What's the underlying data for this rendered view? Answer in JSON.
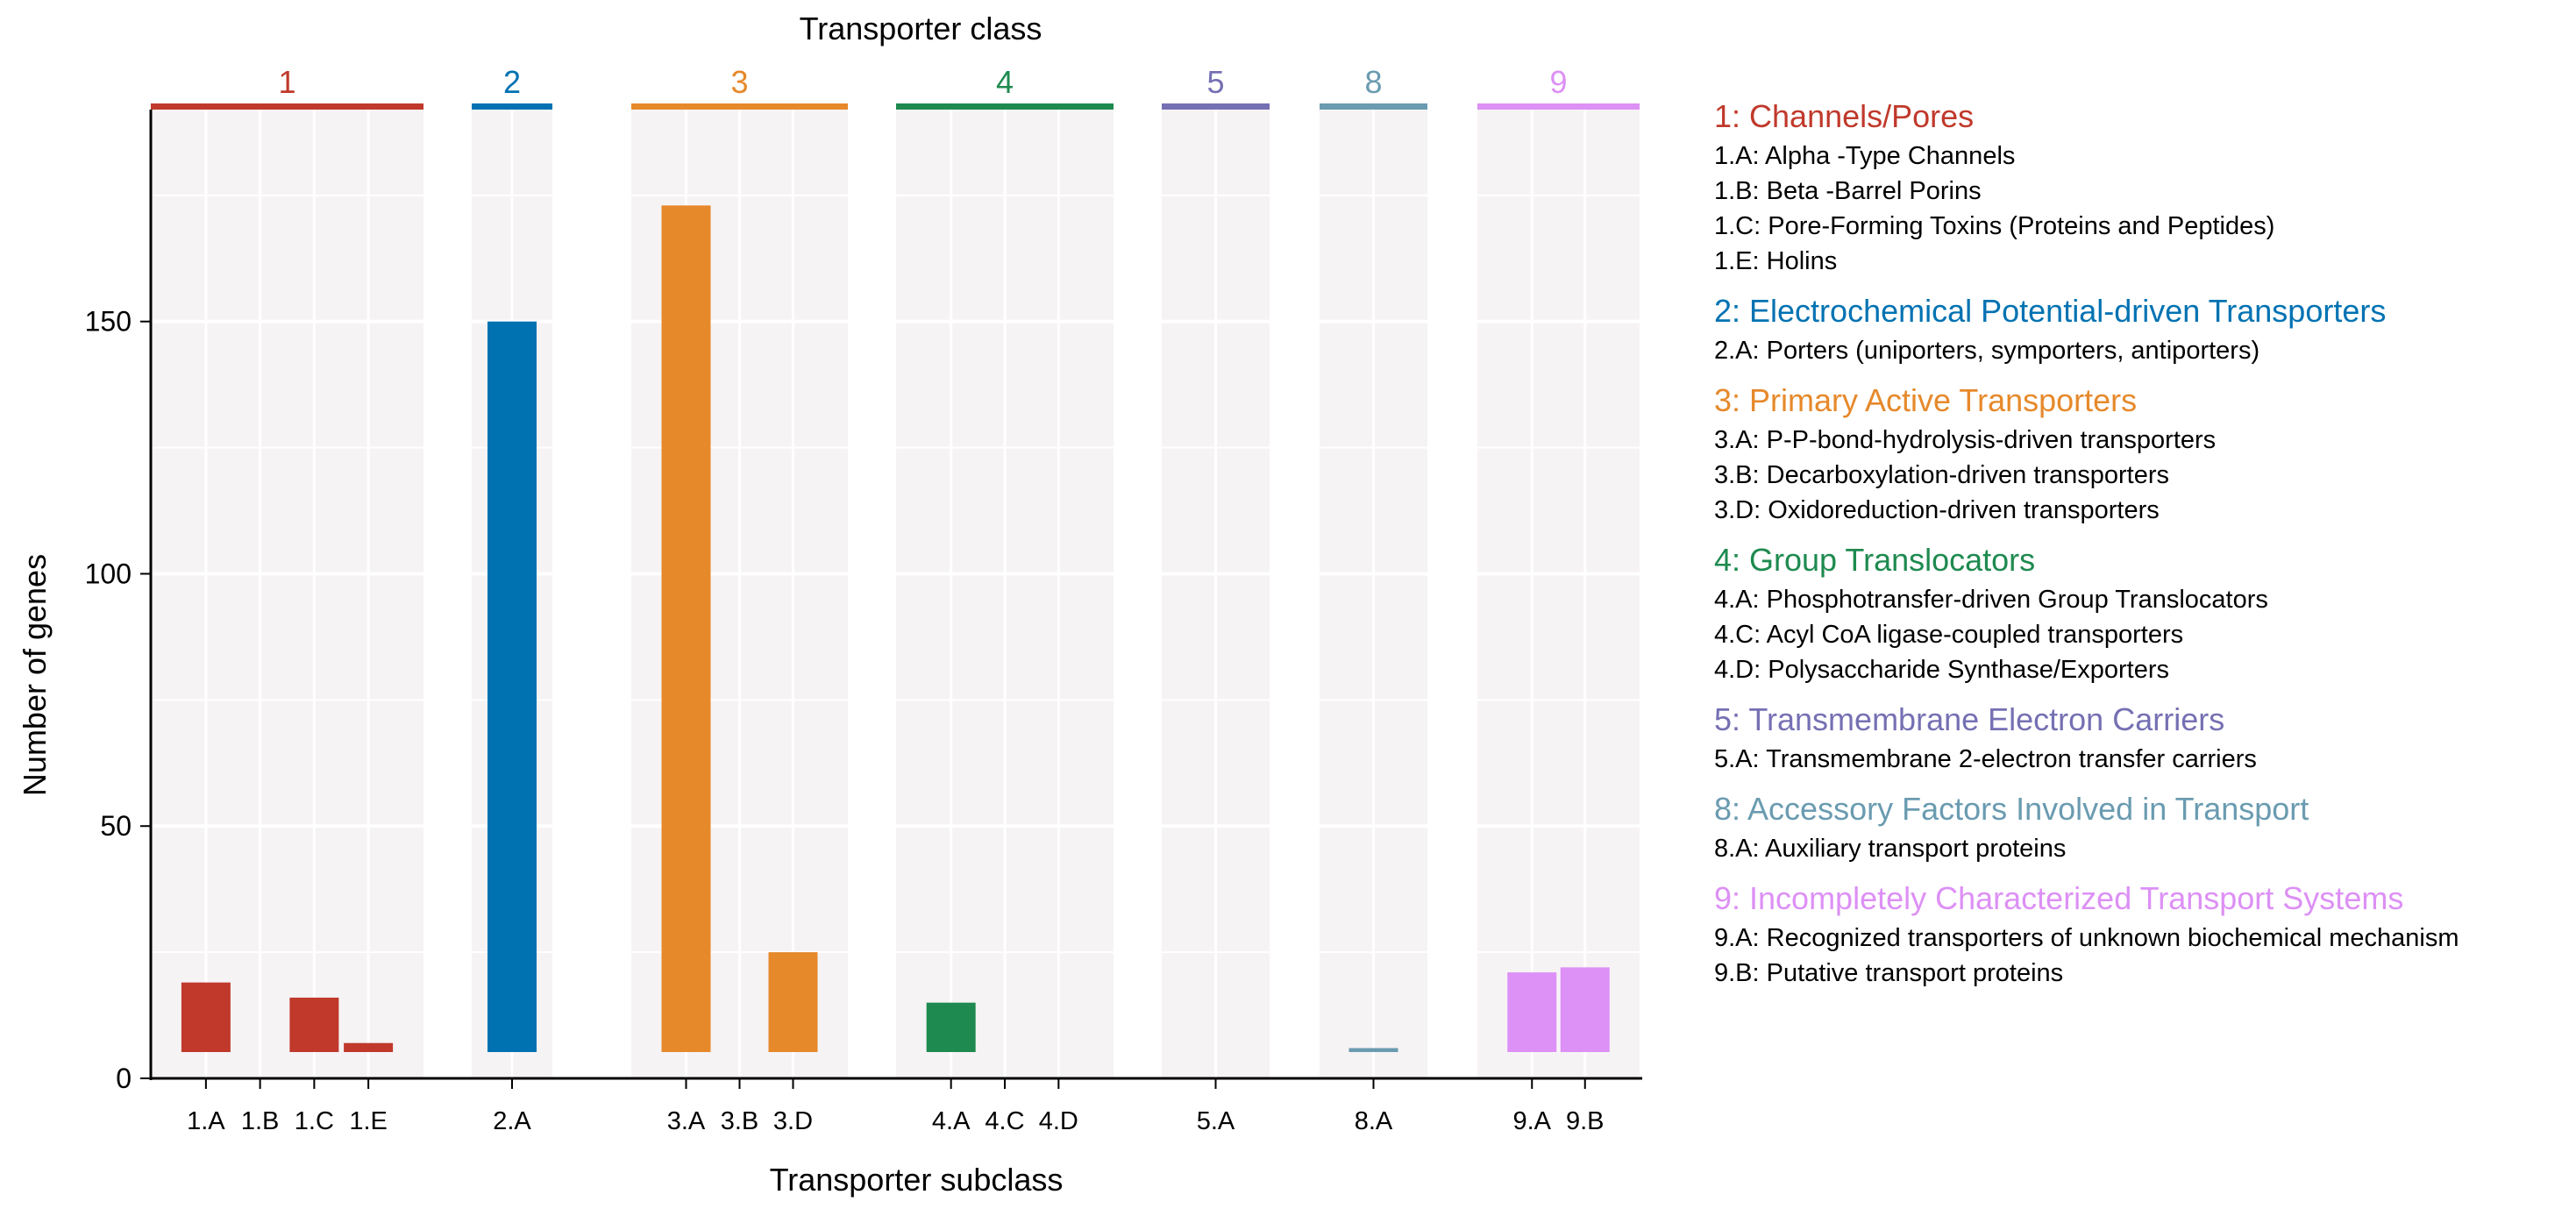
{
  "chart_data": {
    "type": "bar",
    "title": "Transporter class",
    "xlabel": "Transporter subclass",
    "ylabel": "Number of genes",
    "ylim": [
      0,
      192
    ],
    "y_ticks": [
      "0",
      "50",
      "100",
      "150"
    ],
    "grid": true,
    "legend_position": "right",
    "facets": [
      {
        "label": "1",
        "color": "#c0392b",
        "categories": [
          "1.A",
          "1.B",
          "1.C",
          "1.E"
        ],
        "values": [
          19,
          1,
          16,
          7
        ]
      },
      {
        "label": "2",
        "color": "#0072b2",
        "categories": [
          "2.A"
        ],
        "values": [
          150
        ]
      },
      {
        "label": "3",
        "color": "#e6892b",
        "categories": [
          "3.A",
          "3.B",
          "3.D"
        ],
        "values": [
          173,
          1,
          25
        ]
      },
      {
        "label": "4",
        "color": "#1e8a4f",
        "categories": [
          "4.A",
          "4.C",
          "4.D"
        ],
        "values": [
          15,
          1,
          1
        ]
      },
      {
        "label": "5",
        "color": "#7570b3",
        "categories": [
          "5.A"
        ],
        "values": [
          1
        ]
      },
      {
        "label": "8",
        "color": "#6a9bb0",
        "categories": [
          "8.A"
        ],
        "values": [
          6
        ]
      },
      {
        "label": "9",
        "color": "#dd90f5",
        "categories": [
          "9.A",
          "9.B"
        ],
        "values": [
          21,
          22
        ]
      }
    ]
  },
  "legend": [
    {
      "title": "1: Channels/Pores",
      "color": "#c0392b",
      "items": [
        "1.A: Alpha -Type Channels",
        "1.B: Beta -Barrel Porins",
        "1.C: Pore-Forming Toxins (Proteins and Peptides)",
        "1.E: Holins"
      ]
    },
    {
      "title": "2: Electrochemical Potential-driven Transporters",
      "color": "#0072b2",
      "items": [
        "2.A: Porters (uniporters, symporters, antiporters)"
      ]
    },
    {
      "title": "3: Primary Active Transporters",
      "color": "#e6892b",
      "items": [
        "3.A: P-P-bond-hydrolysis-driven transporters",
        "3.B: Decarboxylation-driven transporters",
        "3.D: Oxidoreduction-driven transporters"
      ]
    },
    {
      "title": "4: Group Translocators",
      "color": "#1e8a4f",
      "items": [
        "4.A: Phosphotransfer-driven Group Translocators",
        "4.C: Acyl CoA ligase-coupled transporters",
        "4.D: Polysaccharide Synthase/Exporters"
      ]
    },
    {
      "title": "5: Transmembrane Electron Carriers",
      "color": "#7570b3",
      "items": [
        "5.A: Transmembrane 2-electron transfer carriers"
      ]
    },
    {
      "title": "8: Accessory Factors Involved in Transport",
      "color": "#6a9bb0",
      "items": [
        "8.A: Auxiliary transport proteins"
      ]
    },
    {
      "title": "9: Incompletely Characterized Transport Systems",
      "color": "#dd90f5",
      "items": [
        "9.A: Recognized transporters of unknown biochemical mechanism",
        "9.B: Putative transport proteins"
      ]
    }
  ]
}
